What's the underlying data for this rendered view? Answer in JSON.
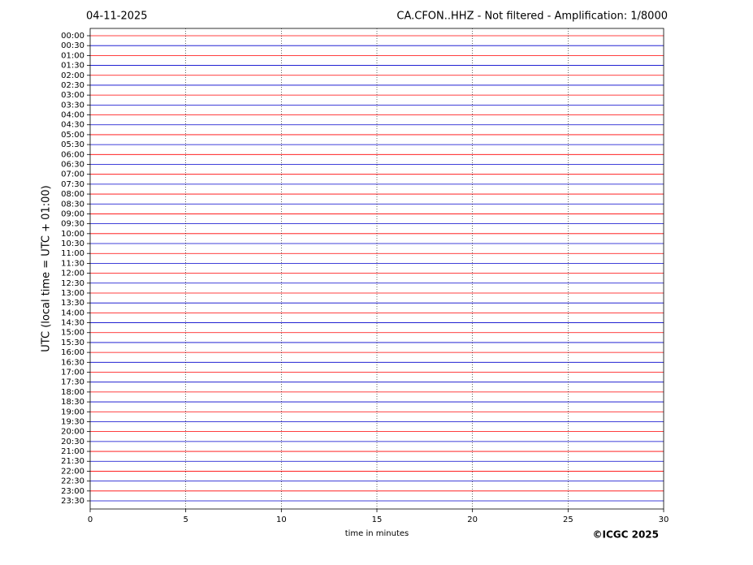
{
  "chart_data": {
    "type": "helicorder",
    "date": "04-11-2025",
    "title": "CA.CFON..HHZ - Not filtered - Amplification: 1/8000",
    "xlabel": "time in minutes",
    "ylabel": "UTC (local time = UTC + 01:00)",
    "credit": "©ICGC 2025",
    "xlim": [
      0,
      30
    ],
    "xticks": [
      0,
      5,
      10,
      15,
      20,
      25,
      30
    ],
    "grid": true,
    "trace_colors": [
      "#ff0000",
      "#0000cc"
    ],
    "rows": [
      "00:00",
      "00:30",
      "01:00",
      "01:30",
      "02:00",
      "02:30",
      "03:00",
      "03:30",
      "04:00",
      "04:30",
      "05:00",
      "05:30",
      "06:00",
      "06:30",
      "07:00",
      "07:30",
      "08:00",
      "08:30",
      "09:00",
      "09:30",
      "10:00",
      "10:30",
      "11:00",
      "11:30",
      "12:00",
      "12:30",
      "13:00",
      "13:30",
      "14:00",
      "14:30",
      "15:00",
      "15:30",
      "16:00",
      "16:30",
      "17:00",
      "17:30",
      "18:00",
      "18:30",
      "19:00",
      "19:30",
      "20:00",
      "20:30",
      "21:00",
      "21:30",
      "22:00",
      "22:30",
      "23:00",
      "23:30"
    ]
  }
}
